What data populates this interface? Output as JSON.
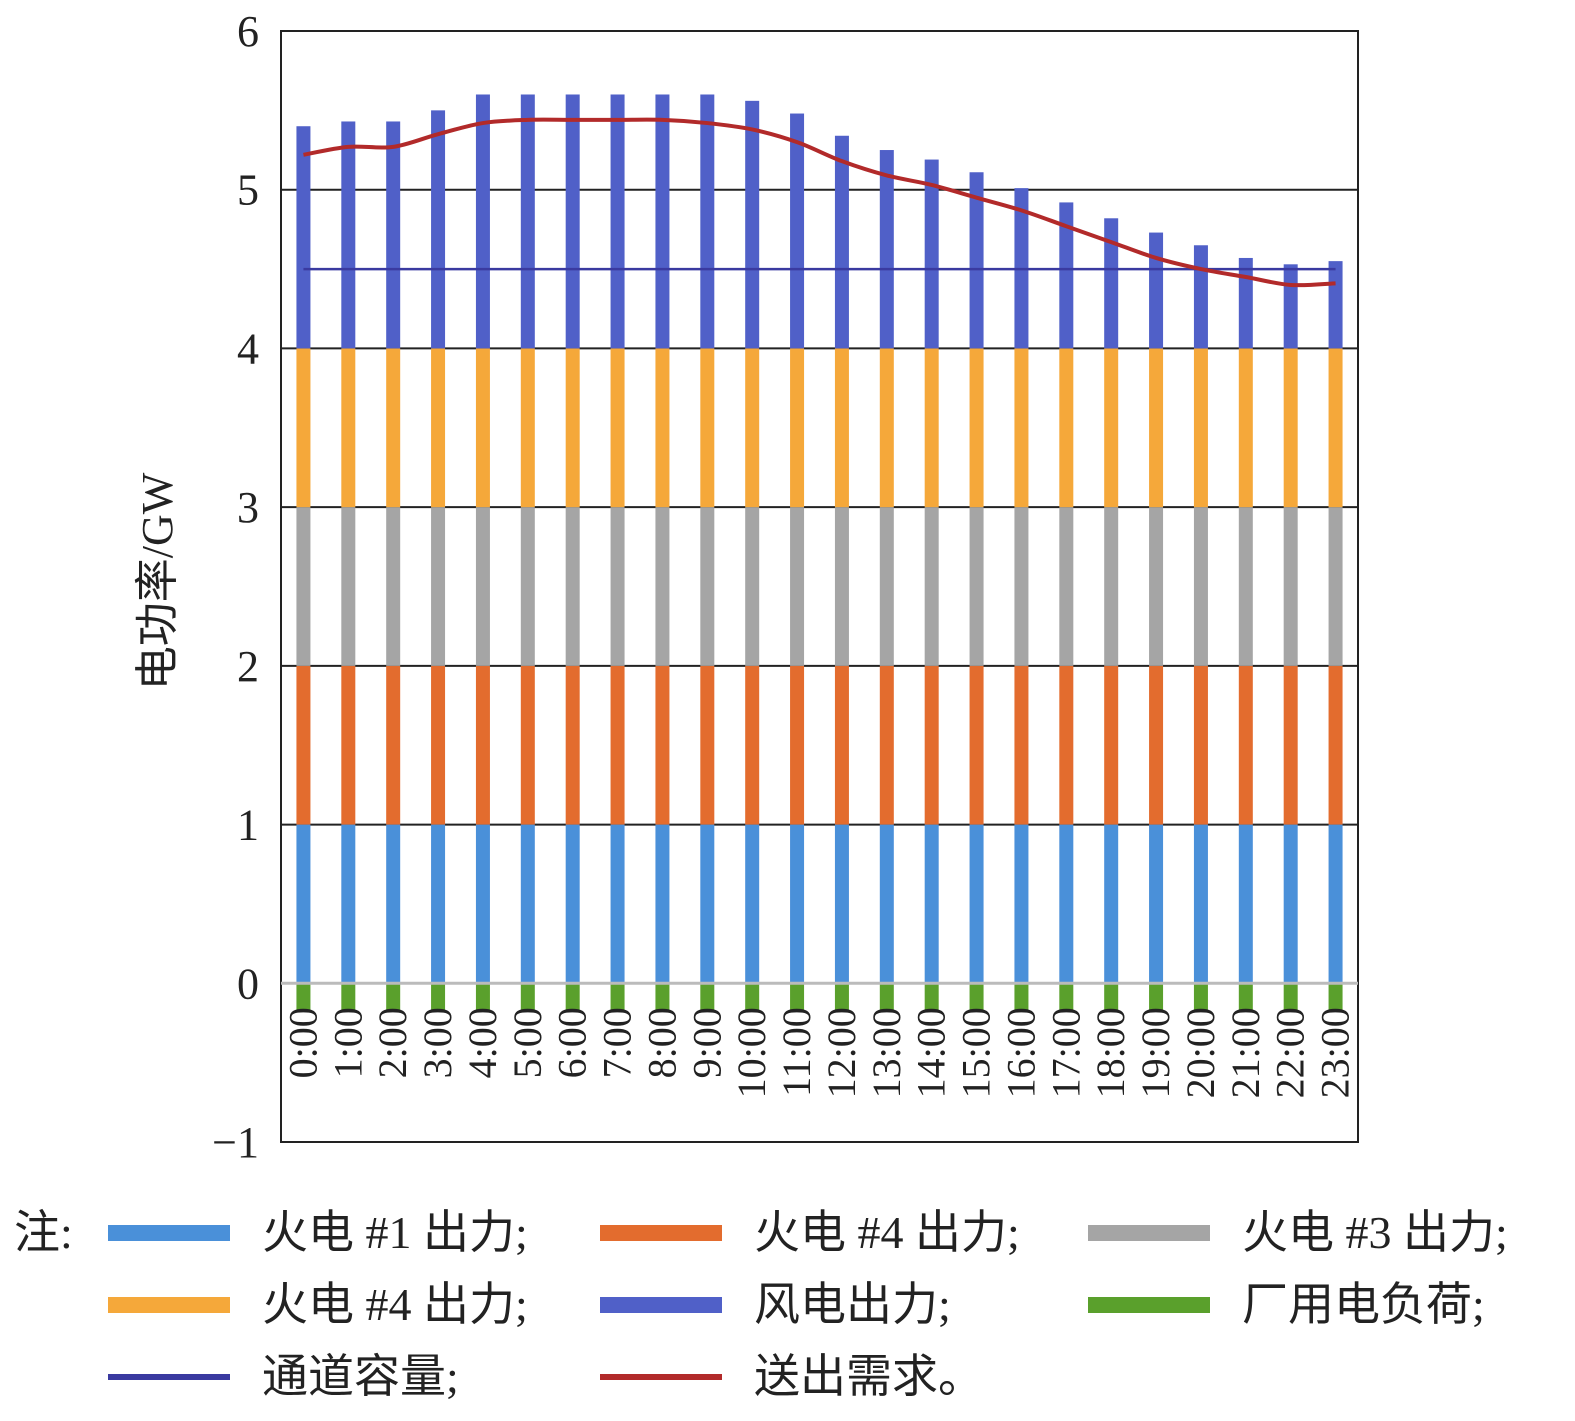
{
  "chart_data": {
    "type": "bar",
    "stacked": true,
    "ylabel": "电功率/GW",
    "xlabel": "",
    "ylim": [
      -1,
      6
    ],
    "yticks": [
      "−1",
      "0",
      "1",
      "2",
      "3",
      "4",
      "5",
      "6"
    ],
    "grid": true,
    "legend_position": "bottom",
    "categories": [
      "0:00",
      "1:00",
      "2:00",
      "3:00",
      "4:00",
      "5:00",
      "6:00",
      "7:00",
      "8:00",
      "9:00",
      "10:00",
      "11:00",
      "12:00",
      "13:00",
      "14:00",
      "15:00",
      "16:00",
      "17:00",
      "18:00",
      "19:00",
      "20:00",
      "21:00",
      "22:00",
      "23:00"
    ],
    "series": [
      {
        "name": "火电 #1 出力",
        "color": "#4a90d9",
        "kind": "bar",
        "values": [
          1,
          1,
          1,
          1,
          1,
          1,
          1,
          1,
          1,
          1,
          1,
          1,
          1,
          1,
          1,
          1,
          1,
          1,
          1,
          1,
          1,
          1,
          1,
          1
        ]
      },
      {
        "name": "火电 #4 出力",
        "color": "#e36c2e",
        "kind": "bar",
        "values": [
          1,
          1,
          1,
          1,
          1,
          1,
          1,
          1,
          1,
          1,
          1,
          1,
          1,
          1,
          1,
          1,
          1,
          1,
          1,
          1,
          1,
          1,
          1,
          1
        ]
      },
      {
        "name": "火电 #3 出力",
        "color": "#a5a5a5",
        "kind": "bar",
        "values": [
          1,
          1,
          1,
          1,
          1,
          1,
          1,
          1,
          1,
          1,
          1,
          1,
          1,
          1,
          1,
          1,
          1,
          1,
          1,
          1,
          1,
          1,
          1,
          1
        ]
      },
      {
        "name": "火电 #4 出力",
        "color": "#f5a83a",
        "kind": "bar",
        "values": [
          1,
          1,
          1,
          1,
          1,
          1,
          1,
          1,
          1,
          1,
          1,
          1,
          1,
          1,
          1,
          1,
          1,
          1,
          1,
          1,
          1,
          1,
          1,
          1
        ]
      },
      {
        "name": "风电出力",
        "color": "#5060c8",
        "kind": "bar",
        "values": [
          1.4,
          1.43,
          1.43,
          1.5,
          1.6,
          1.6,
          1.6,
          1.6,
          1.6,
          1.6,
          1.56,
          1.48,
          1.34,
          1.25,
          1.19,
          1.11,
          1.01,
          0.92,
          0.82,
          0.73,
          0.65,
          0.57,
          0.53,
          0.55
        ]
      },
      {
        "name": "厂用电负荷",
        "color": "#5aa02c",
        "kind": "bar",
        "values": [
          -0.18,
          -0.18,
          -0.18,
          -0.18,
          -0.18,
          -0.18,
          -0.18,
          -0.18,
          -0.18,
          -0.18,
          -0.18,
          -0.18,
          -0.18,
          -0.18,
          -0.18,
          -0.18,
          -0.18,
          -0.18,
          -0.18,
          -0.18,
          -0.18,
          -0.18,
          -0.18,
          -0.18
        ]
      },
      {
        "name": "通道容量",
        "color": "#3a3aa0",
        "kind": "line",
        "values": [
          4.5,
          4.5,
          4.5,
          4.5,
          4.5,
          4.5,
          4.5,
          4.5,
          4.5,
          4.5,
          4.5,
          4.5,
          4.5,
          4.5,
          4.5,
          4.5,
          4.5,
          4.5,
          4.5,
          4.5,
          4.5,
          4.5,
          4.5,
          4.5
        ]
      },
      {
        "name": "送出需求",
        "color": "#b22a2a",
        "kind": "line",
        "values": [
          5.22,
          5.27,
          5.27,
          5.35,
          5.42,
          5.44,
          5.44,
          5.44,
          5.44,
          5.42,
          5.38,
          5.3,
          5.18,
          5.09,
          5.03,
          4.95,
          4.87,
          4.77,
          4.67,
          4.57,
          4.5,
          4.45,
          4.4,
          4.41
        ]
      }
    ]
  },
  "legend": {
    "note": "注:",
    "items": [
      {
        "label": "火电 #1 出力;",
        "color": "#4a90d9",
        "kind": "bar"
      },
      {
        "label": "火电 #4 出力;",
        "color": "#e36c2e",
        "kind": "bar"
      },
      {
        "label": "火电 #3 出力;",
        "color": "#a5a5a5",
        "kind": "bar"
      },
      {
        "label": "火电 #4 出力;",
        "color": "#f5a83a",
        "kind": "bar"
      },
      {
        "label": "风电出力;",
        "color": "#5060c8",
        "kind": "bar"
      },
      {
        "label": "厂用电负荷;",
        "color": "#5aa02c",
        "kind": "bar"
      },
      {
        "label": "通道容量;",
        "color": "#3a3aa0",
        "kind": "line"
      },
      {
        "label": "送出需求。",
        "color": "#b22a2a",
        "kind": "line"
      }
    ]
  }
}
